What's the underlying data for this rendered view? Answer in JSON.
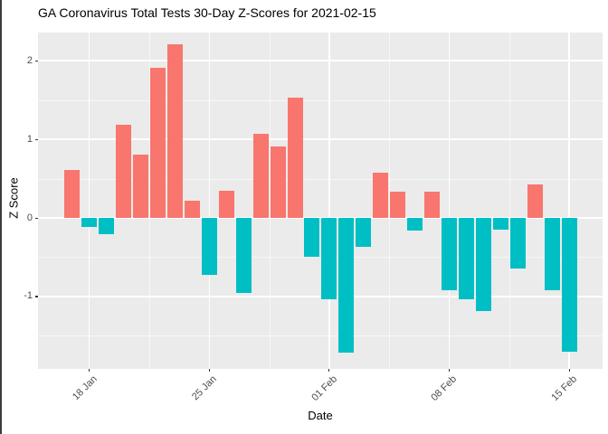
{
  "title": "GA Coronavirus Total Tests 30-Day Z-Scores for 2021-02-15",
  "chart_data": {
    "type": "bar",
    "title": "GA Coronavirus Total Tests 30-Day Z-Scores for 2021-02-15",
    "xlabel": "Date",
    "ylabel": "Z Score",
    "x": [
      "2021-01-17",
      "2021-01-18",
      "2021-01-19",
      "2021-01-20",
      "2021-01-21",
      "2021-01-22",
      "2021-01-23",
      "2021-01-24",
      "2021-01-25",
      "2021-01-26",
      "2021-01-27",
      "2021-01-28",
      "2021-01-29",
      "2021-01-30",
      "2021-01-31",
      "2021-02-01",
      "2021-02-02",
      "2021-02-03",
      "2021-02-04",
      "2021-02-05",
      "2021-02-06",
      "2021-02-07",
      "2021-02-08",
      "2021-02-09",
      "2021-02-10",
      "2021-02-11",
      "2021-02-12",
      "2021-02-13",
      "2021-02-14",
      "2021-02-15"
    ],
    "values": [
      0.61,
      -0.12,
      -0.21,
      1.18,
      0.8,
      1.91,
      2.21,
      0.22,
      -0.72,
      0.34,
      -0.96,
      1.07,
      0.91,
      1.53,
      -0.5,
      -1.03,
      -1.72,
      -0.37,
      0.58,
      0.33,
      -0.16,
      0.33,
      -0.92,
      -1.04,
      -1.18,
      -0.15,
      -0.64,
      0.43,
      -0.92,
      -1.7
    ],
    "ylim": [
      -1.92,
      2.36
    ],
    "y_ticks": [
      2,
      1,
      0,
      -1
    ],
    "y_minor_ticks": [
      1.5,
      0.5,
      -0.5,
      -1.5
    ],
    "x_tick_labels": [
      "18 Jan",
      "25 Jan",
      "01 Feb",
      "08 Feb",
      "15 Feb"
    ],
    "x_tick_indices": [
      1,
      8,
      15,
      22,
      29
    ],
    "grid": true,
    "legend_position": "none",
    "colors": {
      "positive": "#F8766D",
      "negative": "#00BFC4",
      "panel_background": "#EBEBEB",
      "gridline": "#FFFFFF",
      "tick_text": "#4D4D4D",
      "title_text": "#000000"
    }
  }
}
